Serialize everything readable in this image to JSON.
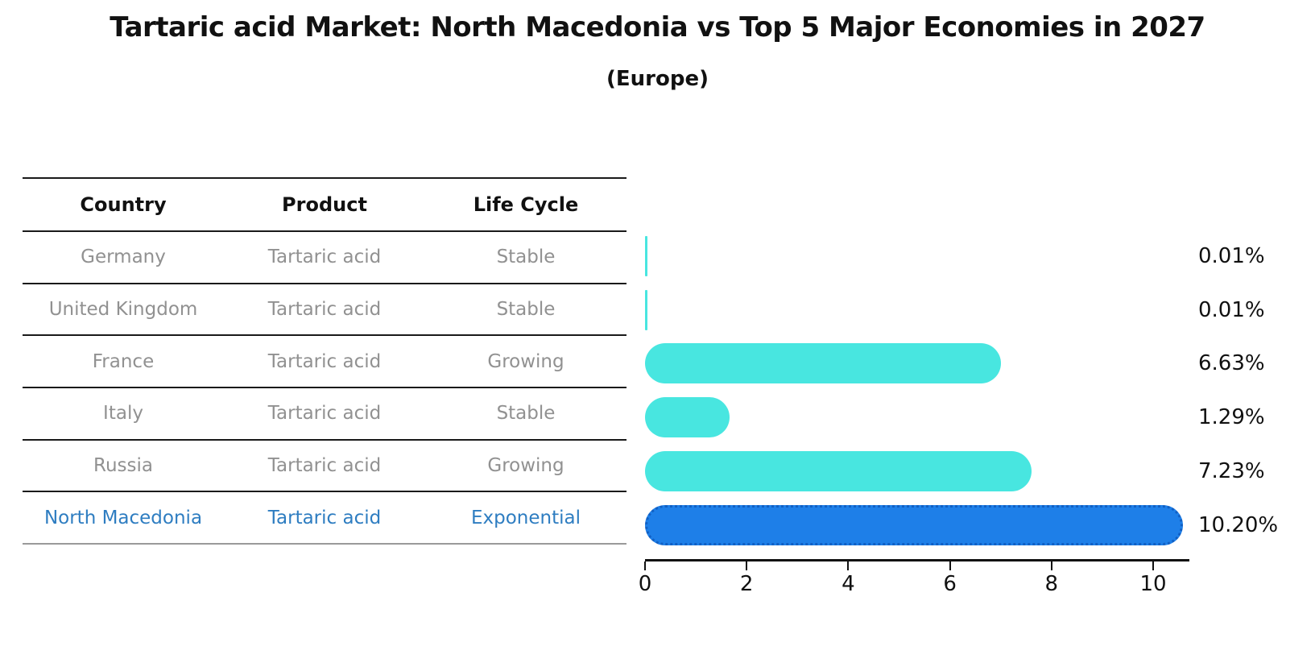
{
  "title": "Tartaric acid Market: North Macedonia vs Top 5 Major Economies in 2027",
  "subtitle": "(Europe)",
  "table": {
    "headers": [
      "Country",
      "Product",
      "Life Cycle"
    ],
    "rows": [
      {
        "country": "Germany",
        "product": "Tartaric acid",
        "life_cycle": "Stable",
        "highlight": false
      },
      {
        "country": "United Kingdom",
        "product": "Tartaric acid",
        "life_cycle": "Stable",
        "highlight": false
      },
      {
        "country": "France",
        "product": "Tartaric acid",
        "life_cycle": "Growing",
        "highlight": false
      },
      {
        "country": "Italy",
        "product": "Tartaric acid",
        "life_cycle": "Stable",
        "highlight": false
      },
      {
        "country": "Russia",
        "product": "Tartaric acid",
        "life_cycle": "Growing",
        "highlight": false
      },
      {
        "country": "North Macedonia",
        "product": "Tartaric acid",
        "life_cycle": "Exponential",
        "highlight": true
      }
    ]
  },
  "chart_data": {
    "type": "bar",
    "orientation": "horizontal",
    "categories": [
      "Germany",
      "United Kingdom",
      "France",
      "Italy",
      "Russia",
      "North Macedonia"
    ],
    "values": [
      0.01,
      0.01,
      6.63,
      1.29,
      7.23,
      10.2
    ],
    "value_labels": [
      "0.01%",
      "0.01%",
      "6.63%",
      "1.29%",
      "7.23%",
      "10.20%"
    ],
    "highlight_index": 5,
    "x_ticks": [
      0,
      2,
      4,
      6,
      8,
      10
    ],
    "xlim": [
      0,
      10.72
    ],
    "grid": false,
    "legend": false,
    "title": "Tartaric acid Market: North Macedonia vs Top 5 Major Economies in 2027 (Europe)",
    "xlabel": "",
    "ylabel": ""
  },
  "colors": {
    "bar_default": "#48e6e0",
    "bar_highlight": "#1e7fe8",
    "bar_highlight_edge": "#1160c4",
    "highlight_text": "#2e7dc1",
    "muted_text": "#919191",
    "axis": "#111111"
  }
}
